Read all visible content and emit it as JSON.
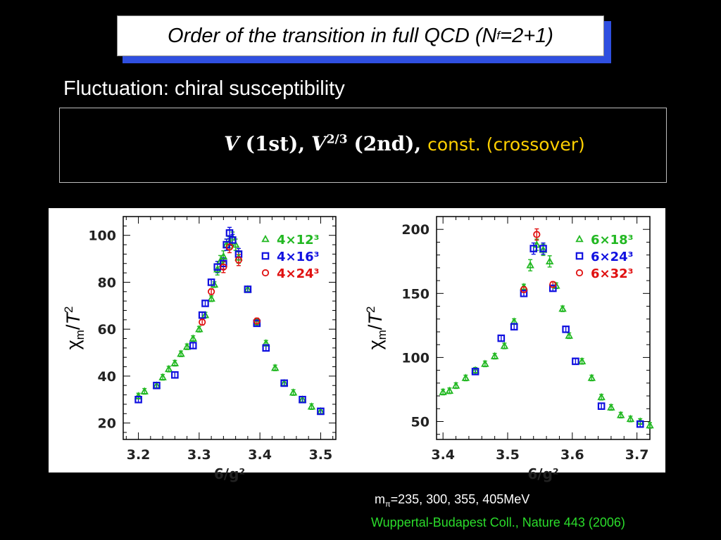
{
  "slide": {
    "title_main": "Order of the transition in full QCD (N",
    "title_sub": "f",
    "title_end": "=2+1)",
    "subtitle": "Fluctuation: chiral susceptibility",
    "formula": {
      "v1": "V",
      "t1": "(1st),",
      "v2": "V",
      "exp": "2/3",
      "t2": "(2nd),",
      "t3": "const. (crossover)"
    },
    "footer_mass_prefix": "m",
    "footer_mass_sub": "π",
    "footer_mass_rest": "=235, 300, 355, 405MeV",
    "footer_citation": "Wuppertal-Budapest Coll., Nature 443 (2006)"
  },
  "colors": {
    "green": "#22b822",
    "blue": "#1010e0",
    "red": "#e01010",
    "yellow": "#ffd000",
    "cite": "#2bdc2b"
  },
  "chart_data": [
    {
      "type": "scatter",
      "xlabel": "6/g²",
      "ylabel": "χm/T2",
      "xlim": [
        3.175,
        3.525
      ],
      "ylim": [
        13,
        108
      ],
      "xticks": [
        "3.2",
        "3.3",
        "3.4",
        "3.5"
      ],
      "yticks": [
        "20",
        "40",
        "60",
        "80",
        "100"
      ],
      "legend_placement": "top-right",
      "series": [
        {
          "name": "4×12³",
          "marker": "triangle",
          "color": "green",
          "x": [
            3.2,
            3.21,
            3.23,
            3.24,
            3.25,
            3.26,
            3.27,
            3.28,
            3.29,
            3.3,
            3.31,
            3.32,
            3.325,
            3.33,
            3.335,
            3.34,
            3.345,
            3.35,
            3.355,
            3.36,
            3.365,
            3.38,
            3.395,
            3.41,
            3.425,
            3.44,
            3.455,
            3.47,
            3.485,
            3.5
          ],
          "y": [
            31.5,
            33.5,
            36,
            39.5,
            43,
            45.5,
            49.5,
            52.5,
            56,
            60,
            66,
            73,
            79,
            85.5,
            89,
            91,
            96,
            97,
            99,
            96,
            90.5,
            77,
            63,
            54,
            43.5,
            37,
            33,
            30,
            27,
            25
          ]
        },
        {
          "name": "4×16³",
          "marker": "square",
          "color": "blue",
          "x": [
            3.2,
            3.23,
            3.26,
            3.29,
            3.305,
            3.31,
            3.32,
            3.33,
            3.34,
            3.345,
            3.35,
            3.355,
            3.365,
            3.38,
            3.395,
            3.41,
            3.44,
            3.47,
            3.5
          ],
          "y": [
            30,
            36,
            40.5,
            53,
            66,
            71,
            80,
            86.5,
            88,
            96,
            101,
            98,
            92,
            77,
            62.5,
            52,
            37,
            30,
            25
          ]
        },
        {
          "name": "4×24³",
          "marker": "circle",
          "color": "red",
          "x": [
            3.305,
            3.32,
            3.34,
            3.35,
            3.365,
            3.395
          ],
          "y": [
            63,
            76,
            86.5,
            95,
            89.5,
            63.5
          ]
        }
      ]
    },
    {
      "type": "scatter",
      "xlabel": "6/g²",
      "ylabel": "χm/T2",
      "xlim": [
        3.39,
        3.72
      ],
      "ylim": [
        36,
        210
      ],
      "xticks": [
        "3.4",
        "3.5",
        "3.6",
        "3.7"
      ],
      "yticks": [
        "50",
        "100",
        "150",
        "200"
      ],
      "legend_placement": "top-right",
      "series": [
        {
          "name": "6×18³",
          "marker": "triangle",
          "color": "green",
          "x": [
            3.4,
            3.41,
            3.42,
            3.435,
            3.45,
            3.465,
            3.48,
            3.495,
            3.51,
            3.525,
            3.535,
            3.545,
            3.555,
            3.565,
            3.575,
            3.585,
            3.595,
            3.615,
            3.63,
            3.645,
            3.66,
            3.675,
            3.69,
            3.705,
            3.72
          ],
          "y": [
            73,
            74,
            78,
            84,
            90,
            95,
            101,
            109,
            128,
            155,
            172,
            188,
            184,
            175,
            156,
            138,
            117,
            97,
            84,
            69,
            61,
            55,
            52,
            50,
            47
          ]
        },
        {
          "name": "6×24³",
          "marker": "square",
          "color": "blue",
          "x": [
            3.45,
            3.49,
            3.51,
            3.525,
            3.54,
            3.555,
            3.57,
            3.59,
            3.605,
            3.645,
            3.705
          ],
          "y": [
            89,
            115,
            124,
            150,
            185,
            185,
            154,
            122,
            97,
            62,
            48
          ]
        },
        {
          "name": "6×32³",
          "marker": "circle",
          "color": "red",
          "x": [
            3.525,
            3.545,
            3.57
          ],
          "y": [
            153,
            196,
            157
          ]
        }
      ]
    }
  ]
}
